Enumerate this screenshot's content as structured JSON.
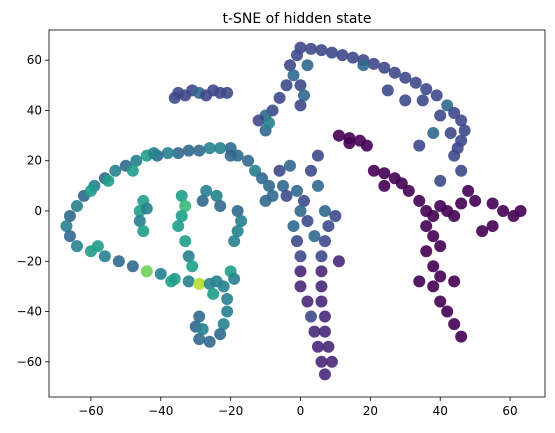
{
  "chart_data": {
    "type": "scatter",
    "title": "t-SNE of hidden state",
    "xlabel": "",
    "ylabel": "",
    "xlim": [
      -72,
      70
    ],
    "ylim": [
      -74,
      72
    ],
    "xticks": [
      -60,
      -40,
      -20,
      0,
      20,
      40,
      60
    ],
    "yticks": [
      -60,
      -40,
      -20,
      0,
      20,
      40,
      60
    ],
    "grid": false,
    "colormap": "viridis",
    "color_value_range": [
      0,
      1
    ],
    "palette": [
      "#440154",
      "#482878",
      "#3e4989",
      "#31688e",
      "#26828e",
      "#1f9e89",
      "#35b779",
      "#6ece58",
      "#b5de2b",
      "#fde725"
    ],
    "marker_color_alpha": 0.9,
    "points": [
      {
        "x": 0.0,
        "y": 65.0,
        "c": 0.2
      },
      {
        "x": 3.0,
        "y": 64.5,
        "c": 0.2
      },
      {
        "x": 6.0,
        "y": 64.0,
        "c": 0.22
      },
      {
        "x": 9.0,
        "y": 63.0,
        "c": 0.2
      },
      {
        "x": 12.0,
        "y": 62.0,
        "c": 0.25
      },
      {
        "x": 15.0,
        "y": 61.0,
        "c": 0.2
      },
      {
        "x": 18.0,
        "y": 60.0,
        "c": 0.2
      },
      {
        "x": 21.0,
        "y": 58.5,
        "c": 0.22
      },
      {
        "x": 24.0,
        "y": 57.0,
        "c": 0.2
      },
      {
        "x": 27.0,
        "y": 55.0,
        "c": 0.25
      },
      {
        "x": 30.0,
        "y": 53.0,
        "c": 0.2
      },
      {
        "x": 33.0,
        "y": 51.0,
        "c": 0.22
      },
      {
        "x": 36.0,
        "y": 48.5,
        "c": 0.25
      },
      {
        "x": 39.0,
        "y": 46.0,
        "c": 0.2
      },
      {
        "x": 42.0,
        "y": 42.0,
        "c": 0.3
      },
      {
        "x": 44.0,
        "y": 39.0,
        "c": 0.22
      },
      {
        "x": 46.0,
        "y": 36.0,
        "c": 0.2
      },
      {
        "x": 47.0,
        "y": 32.0,
        "c": 0.25
      },
      {
        "x": 46.0,
        "y": 28.0,
        "c": 0.2
      },
      {
        "x": 45.0,
        "y": 25.0,
        "c": 0.22
      },
      {
        "x": 43.0,
        "y": 31.0,
        "c": 0.25
      },
      {
        "x": 38.0,
        "y": 31.0,
        "c": 0.3
      },
      {
        "x": 34.0,
        "y": 26.0,
        "c": 0.2
      },
      {
        "x": 18.0,
        "y": 58.0,
        "c": 0.28
      },
      {
        "x": 25.0,
        "y": 48.0,
        "c": 0.2
      },
      {
        "x": 30.0,
        "y": 44.0,
        "c": 0.22
      },
      {
        "x": 35.0,
        "y": 44.0,
        "c": 0.2
      },
      {
        "x": 40.0,
        "y": 38.0,
        "c": 0.25
      },
      {
        "x": 44.0,
        "y": 22.0,
        "c": 0.2
      },
      {
        "x": 46.0,
        "y": 16.0,
        "c": 0.2
      },
      {
        "x": 40.0,
        "y": 12.0,
        "c": 0.2
      },
      {
        "x": -1.0,
        "y": 62.0,
        "c": 0.2
      },
      {
        "x": -3.0,
        "y": 58.0,
        "c": 0.25
      },
      {
        "x": -2.0,
        "y": 54.0,
        "c": 0.3
      },
      {
        "x": 0.0,
        "y": 50.0,
        "c": 0.22
      },
      {
        "x": 1.0,
        "y": 46.0,
        "c": 0.3
      },
      {
        "x": 0.0,
        "y": 42.0,
        "c": 0.25
      },
      {
        "x": 2.0,
        "y": 58.0,
        "c": 0.35
      },
      {
        "x": -4.0,
        "y": 50.0,
        "c": 0.25
      },
      {
        "x": -6.0,
        "y": 45.0,
        "c": 0.2
      },
      {
        "x": -8.0,
        "y": 40.0,
        "c": 0.25
      },
      {
        "x": -10.0,
        "y": 38.0,
        "c": 0.3
      },
      {
        "x": -12.0,
        "y": 36.0,
        "c": 0.25
      },
      {
        "x": -10.0,
        "y": 32.0,
        "c": 0.3
      },
      {
        "x": -9.0,
        "y": 35.0,
        "c": 0.45
      },
      {
        "x": -35.0,
        "y": 47.0,
        "c": 0.2
      },
      {
        "x": -33.0,
        "y": 46.0,
        "c": 0.25
      },
      {
        "x": -31.0,
        "y": 48.0,
        "c": 0.2
      },
      {
        "x": -29.0,
        "y": 47.0,
        "c": 0.3
      },
      {
        "x": -27.0,
        "y": 46.0,
        "c": 0.25
      },
      {
        "x": -25.0,
        "y": 48.0,
        "c": 0.2
      },
      {
        "x": -23.0,
        "y": 47.0,
        "c": 0.2
      },
      {
        "x": -21.0,
        "y": 47.0,
        "c": 0.22
      },
      {
        "x": -36.0,
        "y": 45.0,
        "c": 0.25
      },
      {
        "x": -20.0,
        "y": 25.0,
        "c": 0.3
      },
      {
        "x": -23.0,
        "y": 25.0,
        "c": 0.45
      },
      {
        "x": -26.0,
        "y": 25.0,
        "c": 0.4
      },
      {
        "x": -29.0,
        "y": 24.0,
        "c": 0.35
      },
      {
        "x": -32.0,
        "y": 24.0,
        "c": 0.3
      },
      {
        "x": -35.0,
        "y": 23.0,
        "c": 0.35
      },
      {
        "x": -38.0,
        "y": 23.0,
        "c": 0.4
      },
      {
        "x": -41.0,
        "y": 22.0,
        "c": 0.3
      },
      {
        "x": -44.0,
        "y": 22.0,
        "c": 0.55
      },
      {
        "x": -47.0,
        "y": 20.0,
        "c": 0.4
      },
      {
        "x": -50.0,
        "y": 18.0,
        "c": 0.35
      },
      {
        "x": -53.0,
        "y": 16.0,
        "c": 0.45
      },
      {
        "x": -56.0,
        "y": 13.0,
        "c": 0.35
      },
      {
        "x": -59.0,
        "y": 10.0,
        "c": 0.4
      },
      {
        "x": -62.0,
        "y": 6.0,
        "c": 0.3
      },
      {
        "x": -64.0,
        "y": 2.0,
        "c": 0.4
      },
      {
        "x": -66.0,
        "y": -2.0,
        "c": 0.35
      },
      {
        "x": -67.0,
        "y": -6.0,
        "c": 0.4
      },
      {
        "x": -66.0,
        "y": -10.0,
        "c": 0.35
      },
      {
        "x": -64.0,
        "y": -14.0,
        "c": 0.4
      },
      {
        "x": -60.0,
        "y": -16.0,
        "c": 0.55
      },
      {
        "x": -56.0,
        "y": -18.0,
        "c": 0.4
      },
      {
        "x": -52.0,
        "y": -20.0,
        "c": 0.35
      },
      {
        "x": -48.0,
        "y": -22.0,
        "c": 0.3
      },
      {
        "x": -44.0,
        "y": -24.0,
        "c": 0.75
      },
      {
        "x": -40.0,
        "y": -25.0,
        "c": 0.4
      },
      {
        "x": -36.0,
        "y": -27.0,
        "c": 0.55
      },
      {
        "x": -32.0,
        "y": -28.0,
        "c": 0.4
      },
      {
        "x": -29.0,
        "y": -29.0,
        "c": 0.9
      },
      {
        "x": -26.0,
        "y": -29.0,
        "c": 0.45
      },
      {
        "x": -24.0,
        "y": -28.0,
        "c": 0.4
      },
      {
        "x": -22.0,
        "y": -30.0,
        "c": 0.45
      },
      {
        "x": -21.0,
        "y": -35.0,
        "c": 0.4
      },
      {
        "x": -21.0,
        "y": -40.0,
        "c": 0.45
      },
      {
        "x": -22.0,
        "y": -45.0,
        "c": 0.4
      },
      {
        "x": -23.0,
        "y": -49.0,
        "c": 0.35
      },
      {
        "x": -26.0,
        "y": -52.0,
        "c": 0.35
      },
      {
        "x": -29.0,
        "y": -51.0,
        "c": 0.3
      },
      {
        "x": -30.0,
        "y": -46.0,
        "c": 0.35
      },
      {
        "x": -29.0,
        "y": -42.0,
        "c": 0.3
      },
      {
        "x": -28.0,
        "y": -47.0,
        "c": 0.4
      },
      {
        "x": -55.0,
        "y": 12.0,
        "c": 0.6
      },
      {
        "x": -60.0,
        "y": 8.0,
        "c": 0.55
      },
      {
        "x": -48.0,
        "y": 16.0,
        "c": 0.6
      },
      {
        "x": -58.0,
        "y": -14.0,
        "c": 0.5
      },
      {
        "x": -37.0,
        "y": -28.0,
        "c": 0.6
      },
      {
        "x": -25.0,
        "y": -33.0,
        "c": 0.55
      },
      {
        "x": -42.0,
        "y": 23.0,
        "c": 0.45
      },
      {
        "x": -45.0,
        "y": 4.0,
        "c": 0.5
      },
      {
        "x": -46.0,
        "y": 0.0,
        "c": 0.55
      },
      {
        "x": -46.0,
        "y": -4.0,
        "c": 0.45
      },
      {
        "x": -45.0,
        "y": -8.0,
        "c": 0.5
      },
      {
        "x": -44.0,
        "y": 1.0,
        "c": 0.4
      },
      {
        "x": -34.0,
        "y": 6.0,
        "c": 0.55
      },
      {
        "x": -33.0,
        "y": 2.0,
        "c": 0.65
      },
      {
        "x": -34.0,
        "y": -2.0,
        "c": 0.6
      },
      {
        "x": -35.0,
        "y": -6.0,
        "c": 0.5
      },
      {
        "x": -33.0,
        "y": -12.0,
        "c": 0.5
      },
      {
        "x": -32.0,
        "y": -18.0,
        "c": 0.45
      },
      {
        "x": -31.0,
        "y": -22.0,
        "c": 0.5
      },
      {
        "x": -27.0,
        "y": 8.0,
        "c": 0.4
      },
      {
        "x": -28.0,
        "y": 4.0,
        "c": 0.35
      },
      {
        "x": -24.0,
        "y": 6.0,
        "c": 0.45
      },
      {
        "x": -23.0,
        "y": 2.0,
        "c": 0.3
      },
      {
        "x": -18.0,
        "y": 0.0,
        "c": 0.35
      },
      {
        "x": -17.0,
        "y": -4.0,
        "c": 0.4
      },
      {
        "x": -18.0,
        "y": -8.0,
        "c": 0.45
      },
      {
        "x": -19.0,
        "y": -12.0,
        "c": 0.4
      },
      {
        "x": -20.0,
        "y": -24.0,
        "c": 0.55
      },
      {
        "x": -19.0,
        "y": -27.0,
        "c": 0.45
      },
      {
        "x": -20.0,
        "y": 22.0,
        "c": 0.3
      },
      {
        "x": -18.0,
        "y": 22.0,
        "c": 0.35
      },
      {
        "x": -15.0,
        "y": 20.0,
        "c": 0.3
      },
      {
        "x": -13.0,
        "y": 16.0,
        "c": 0.4
      },
      {
        "x": -11.0,
        "y": 13.0,
        "c": 0.35
      },
      {
        "x": -9.0,
        "y": 10.0,
        "c": 0.3
      },
      {
        "x": -8.0,
        "y": 6.0,
        "c": 0.35
      },
      {
        "x": -10.0,
        "y": 4.0,
        "c": 0.3
      },
      {
        "x": -6.0,
        "y": 16.0,
        "c": 0.25
      },
      {
        "x": -5.0,
        "y": 10.0,
        "c": 0.3
      },
      {
        "x": -4.0,
        "y": 6.0,
        "c": 0.25
      },
      {
        "x": -1.0,
        "y": 8.0,
        "c": 0.3
      },
      {
        "x": 1.0,
        "y": 4.0,
        "c": 0.25
      },
      {
        "x": 0.0,
        "y": 0.0,
        "c": 0.3
      },
      {
        "x": 2.0,
        "y": -4.0,
        "c": 0.25
      },
      {
        "x": -2.0,
        "y": -6.0,
        "c": 0.3
      },
      {
        "x": -1.0,
        "y": -12.0,
        "c": 0.2
      },
      {
        "x": 0.0,
        "y": -18.0,
        "c": 0.2
      },
      {
        "x": 0.0,
        "y": -24.0,
        "c": 0.15
      },
      {
        "x": 0.0,
        "y": -30.0,
        "c": 0.15
      },
      {
        "x": 2.0,
        "y": -36.0,
        "c": 0.15
      },
      {
        "x": 3.0,
        "y": -42.0,
        "c": 0.18
      },
      {
        "x": 4.0,
        "y": -48.0,
        "c": 0.15
      },
      {
        "x": 5.0,
        "y": -54.0,
        "c": 0.15
      },
      {
        "x": 6.0,
        "y": -60.0,
        "c": 0.15
      },
      {
        "x": 7.0,
        "y": -65.0,
        "c": 0.15
      },
      {
        "x": 7.0,
        "y": 0.0,
        "c": 0.3
      },
      {
        "x": 8.0,
        "y": -6.0,
        "c": 0.25
      },
      {
        "x": 7.0,
        "y": -12.0,
        "c": 0.2
      },
      {
        "x": 6.0,
        "y": -18.0,
        "c": 0.2
      },
      {
        "x": 6.0,
        "y": -24.0,
        "c": 0.15
      },
      {
        "x": 6.0,
        "y": -30.0,
        "c": 0.15
      },
      {
        "x": 6.0,
        "y": -36.0,
        "c": 0.15
      },
      {
        "x": 7.0,
        "y": -42.0,
        "c": 0.15
      },
      {
        "x": 7.0,
        "y": -48.0,
        "c": 0.15
      },
      {
        "x": 8.0,
        "y": -54.0,
        "c": 0.15
      },
      {
        "x": 9.0,
        "y": -60.0,
        "c": 0.15
      },
      {
        "x": 4.0,
        "y": -10.0,
        "c": 0.3
      },
      {
        "x": 5.0,
        "y": 10.0,
        "c": 0.3
      },
      {
        "x": 3.0,
        "y": 16.0,
        "c": 0.25
      },
      {
        "x": -3.0,
        "y": 18.0,
        "c": 0.3
      },
      {
        "x": 5.0,
        "y": 22.0,
        "c": 0.2
      },
      {
        "x": 10.0,
        "y": -2.0,
        "c": 0.2
      },
      {
        "x": 11.0,
        "y": -20.0,
        "c": 0.15
      },
      {
        "x": 11.0,
        "y": 30.0,
        "c": 0.0
      },
      {
        "x": 14.0,
        "y": 29.0,
        "c": 0.0
      },
      {
        "x": 17.0,
        "y": 28.0,
        "c": 0.0
      },
      {
        "x": 19.0,
        "y": 26.0,
        "c": 0.0
      },
      {
        "x": 14.0,
        "y": 27.0,
        "c": 0.0
      },
      {
        "x": 21.0,
        "y": 16.0,
        "c": 0.0
      },
      {
        "x": 24.0,
        "y": 15.0,
        "c": 0.0
      },
      {
        "x": 27.0,
        "y": 13.0,
        "c": 0.0
      },
      {
        "x": 29.0,
        "y": 11.0,
        "c": 0.0
      },
      {
        "x": 31.0,
        "y": 8.0,
        "c": 0.0
      },
      {
        "x": 34.0,
        "y": 4.0,
        "c": 0.0
      },
      {
        "x": 36.0,
        "y": 0.0,
        "c": 0.0
      },
      {
        "x": 38.0,
        "y": -2.0,
        "c": 0.0
      },
      {
        "x": 40.0,
        "y": 2.0,
        "c": 0.0
      },
      {
        "x": 42.0,
        "y": 0.0,
        "c": 0.0
      },
      {
        "x": 44.0,
        "y": -2.0,
        "c": 0.0
      },
      {
        "x": 46.0,
        "y": 3.0,
        "c": 0.0
      },
      {
        "x": 36.0,
        "y": -6.0,
        "c": 0.0
      },
      {
        "x": 38.0,
        "y": -10.0,
        "c": 0.0
      },
      {
        "x": 36.0,
        "y": -16.0,
        "c": 0.0
      },
      {
        "x": 38.0,
        "y": -22.0,
        "c": 0.0
      },
      {
        "x": 40.0,
        "y": -26.0,
        "c": 0.0
      },
      {
        "x": 38.0,
        "y": -30.0,
        "c": 0.0
      },
      {
        "x": 40.0,
        "y": -36.0,
        "c": 0.0
      },
      {
        "x": 42.0,
        "y": -40.0,
        "c": 0.0
      },
      {
        "x": 44.0,
        "y": -45.0,
        "c": 0.0
      },
      {
        "x": 46.0,
        "y": -50.0,
        "c": 0.0
      },
      {
        "x": 34.0,
        "y": -28.0,
        "c": 0.0
      },
      {
        "x": 44.0,
        "y": -28.0,
        "c": 0.0
      },
      {
        "x": 50.0,
        "y": 4.0,
        "c": 0.0
      },
      {
        "x": 55.0,
        "y": 3.0,
        "c": 0.0
      },
      {
        "x": 58.0,
        "y": 0.0,
        "c": 0.0
      },
      {
        "x": 61.0,
        "y": -2.0,
        "c": 0.0
      },
      {
        "x": 63.0,
        "y": 0.0,
        "c": 0.0
      },
      {
        "x": 55.0,
        "y": -6.0,
        "c": 0.0
      },
      {
        "x": 52.0,
        "y": -8.0,
        "c": 0.0
      },
      {
        "x": 48.0,
        "y": 8.0,
        "c": 0.0
      },
      {
        "x": 24.0,
        "y": 10.0,
        "c": 0.0
      },
      {
        "x": 40.0,
        "y": -14.0,
        "c": 0.0
      }
    ]
  }
}
